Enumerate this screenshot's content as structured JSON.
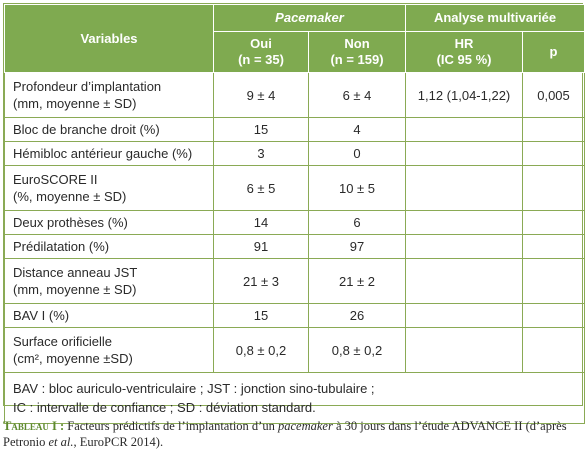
{
  "header": {
    "variables": "Variables",
    "group_pacemaker": "Pacemaker",
    "group_analyse": "Analyse multivariée",
    "col_oui": "Oui",
    "col_oui_n": "(n = 35)",
    "col_non": "Non",
    "col_non_n": "(n = 159)",
    "col_hr": "HR",
    "col_hr_ci": "(IC 95 %)",
    "col_p": "p"
  },
  "rows": [
    {
      "label_1": "Profondeur d’implantation",
      "label_2": "(mm, moyenne ± SD)",
      "oui": "9 ± 4",
      "non": "6 ± 4",
      "hr": "1,12 (1,04-1,22)",
      "p": "0,005"
    },
    {
      "label_1": "Bloc de branche droit (%)",
      "oui": "15",
      "non": "4",
      "hr": "",
      "p": ""
    },
    {
      "label_1": "Hémibloc antérieur gauche (%)",
      "oui": "3",
      "non": "0",
      "hr": "",
      "p": ""
    },
    {
      "label_1": "EuroSCORE II",
      "label_2": "(%, moyenne ± SD)",
      "oui": "6 ± 5",
      "non": "10 ± 5",
      "hr": "",
      "p": ""
    },
    {
      "label_1": "Deux prothèses (%)",
      "oui": "14",
      "non": "6",
      "hr": "",
      "p": ""
    },
    {
      "label_1": "Prédilatation (%)",
      "oui": "91",
      "non": "97",
      "hr": "",
      "p": ""
    },
    {
      "label_1": "Distance anneau JST",
      "label_2": "(mm, moyenne ± SD)",
      "oui": "21 ± 3",
      "non": "21 ± 2",
      "hr": "",
      "p": ""
    },
    {
      "label_1": "BAV I (%)",
      "oui": "15",
      "non": "26",
      "hr": "",
      "p": ""
    },
    {
      "label_1": "Surface orificielle",
      "label_2": "(cm², moyenne ±SD)",
      "oui": "0,8 ± 0,2",
      "non": "0,8 ± 0,2",
      "hr": "",
      "p": ""
    }
  ],
  "legend": {
    "line_1": "BAV : bloc auriculo-ventriculaire ; JST : jonction sino-tubulaire ;",
    "line_2": "IC : intervalle de confiance ; SD : déviation standard."
  },
  "caption": {
    "label": "Tableau I :",
    "text_1": " Facteurs prédictifs de l’implantation d’un ",
    "pacemaker": "pacemaker",
    "text_2": " à 30 jours dans l’étude ADVANCE II (d’après Petronio ",
    "et_al": "et al.",
    "text_3": ", EuroPCR 2014)."
  },
  "colors": {
    "header_green": "#7faa50",
    "border_green": "#8aaa55",
    "caption_label": "#5e8a2e"
  }
}
